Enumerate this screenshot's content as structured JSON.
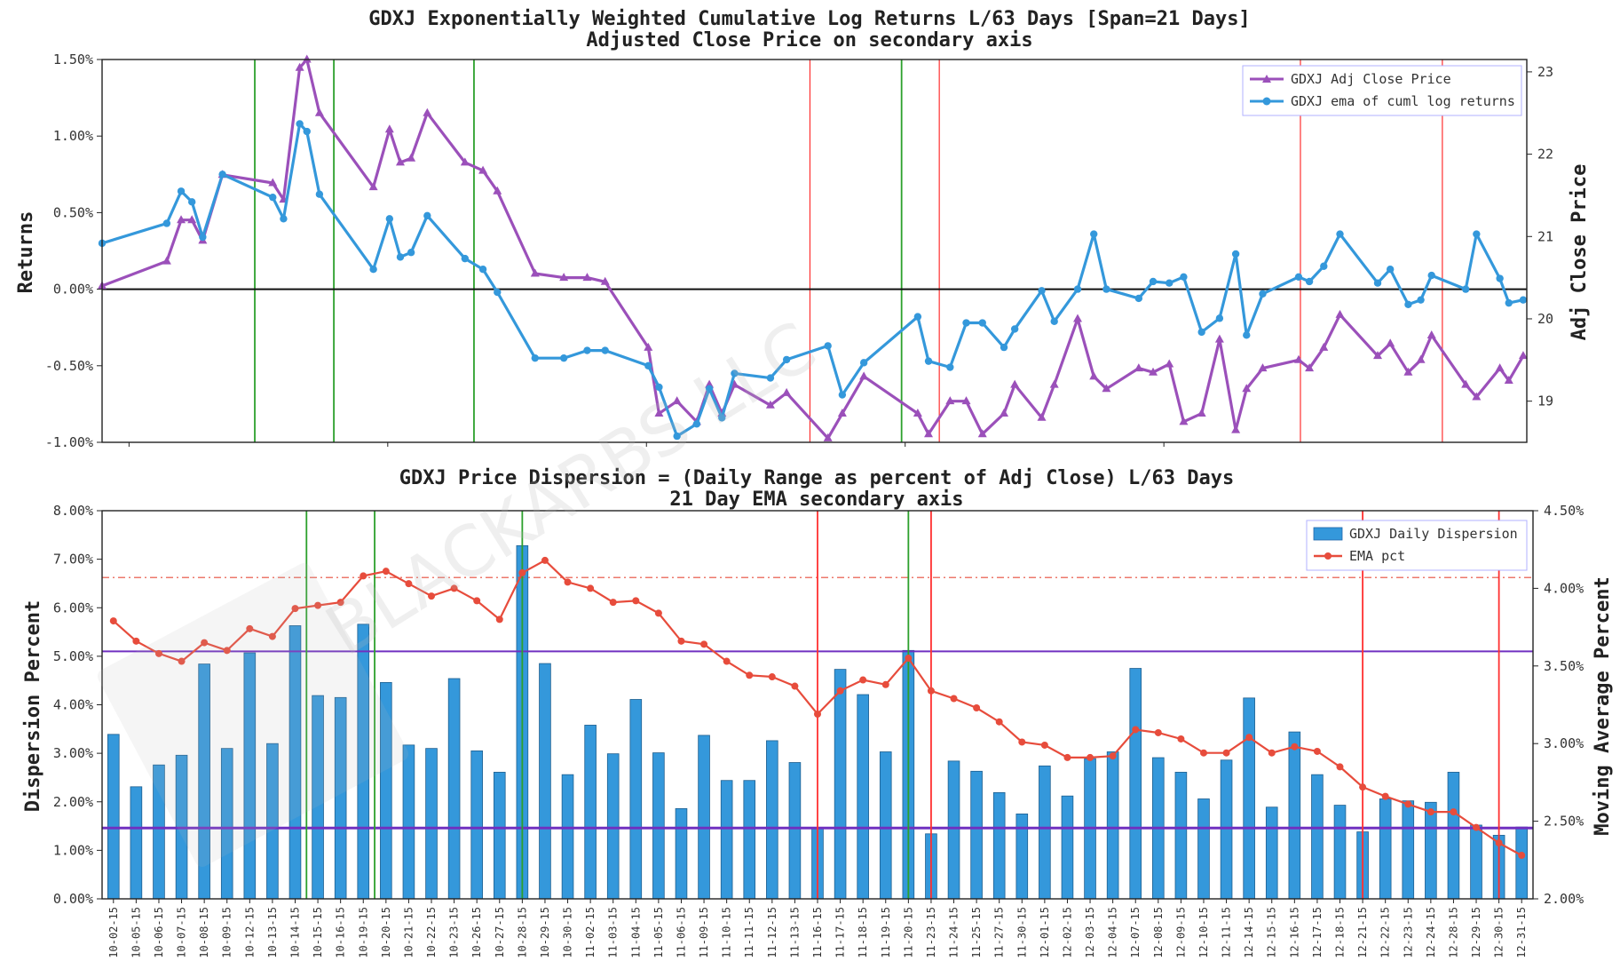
{
  "colors": {
    "adj_close": "#9b50ba",
    "ema_returns": "#3498db",
    "bars": "#3498db",
    "ema_pct": "#e74c3c",
    "hline_purple": "#7030c0",
    "vline_green": "#2ca02c",
    "vline_red": "#ff3030"
  },
  "watermark": "BLACKARBS LLC",
  "dates": [
    "10-02-15",
    "10-05-15",
    "10-06-15",
    "10-07-15",
    "10-08-15",
    "10-09-15",
    "10-12-15",
    "10-13-15",
    "10-14-15",
    "10-15-15",
    "10-16-15",
    "10-19-15",
    "10-20-15",
    "10-21-15",
    "10-22-15",
    "10-23-15",
    "10-26-15",
    "10-27-15",
    "10-28-15",
    "10-29-15",
    "10-30-15",
    "11-02-15",
    "11-03-15",
    "11-04-15",
    "11-05-15",
    "11-06-15",
    "11-09-15",
    "11-10-15",
    "11-11-15",
    "11-12-15",
    "11-13-15",
    "11-16-15",
    "11-17-15",
    "11-18-15",
    "11-19-15",
    "11-20-15",
    "11-23-15",
    "11-24-15",
    "11-25-15",
    "11-27-15",
    "11-30-15",
    "12-01-15",
    "12-02-15",
    "12-03-15",
    "12-04-15",
    "12-07-15",
    "12-08-15",
    "12-09-15",
    "12-10-15",
    "12-11-15",
    "12-14-15",
    "12-15-15",
    "12-16-15",
    "12-17-15",
    "12-18-15",
    "12-21-15",
    "12-22-15",
    "12-23-15",
    "12-24-15",
    "12-28-15",
    "12-29-15",
    "12-30-15",
    "12-31-15"
  ],
  "chart_data": [
    {
      "type": "line",
      "title": "GDXJ Exponentially Weighted Cumulative Log Returns L/63 Days [Span=21 Days]",
      "subtitle": "Adjusted Close Price on secondary axis",
      "ylabel": "Returns",
      "y2label": "Adj Close Price",
      "ylim": [
        -1.0,
        1.5
      ],
      "y2lim": [
        18.5,
        23.15
      ],
      "yticks": [
        "-1.00%",
        "-0.50%",
        "0.00%",
        "0.50%",
        "1.00%",
        "1.50%"
      ],
      "y2ticks": [
        "19",
        "20",
        "21",
        "22",
        "23"
      ],
      "legend_position": "top-right",
      "series": [
        {
          "name": "GDXJ Adj Close Price",
          "axis": "right",
          "marker": "triangle",
          "x": [
            0,
            3.6,
            4.4,
            5.0,
            5.6,
            6.7,
            9.5,
            10.1,
            11.0,
            11.4,
            12.1,
            15.1,
            16.0,
            16.6,
            17.2,
            18.1,
            20.2,
            21.2,
            22.0,
            24.1,
            25.7,
            27.0,
            28.0,
            30.4,
            31.0,
            32.0,
            33.1,
            33.8,
            34.5,
            35.2,
            37.2,
            38.1,
            40.4,
            41.2,
            42.4,
            45.4,
            46.0,
            47.2,
            48.1,
            49.0,
            50.2,
            50.8,
            52.3,
            53.0,
            54.3,
            55.2,
            55.9,
            57.7,
            58.5,
            59.4,
            60.2,
            61.2,
            62.2
          ],
          "values": [
            20.4,
            20.7,
            21.2,
            21.2,
            20.95,
            21.75,
            21.65,
            21.45,
            23.05,
            23.15,
            22.5,
            21.6,
            22.3,
            21.9,
            21.95,
            22.5,
            21.9,
            21.8,
            21.55,
            20.55,
            20.5,
            20.5,
            20.45,
            19.65,
            18.85,
            19.0,
            18.75,
            19.2,
            18.85,
            19.2,
            18.95,
            19.1,
            18.55,
            18.85,
            19.3,
            18.85,
            18.6,
            19.0,
            19.0,
            18.6,
            18.85,
            19.2,
            18.8,
            19.2,
            20.0,
            19.3,
            19.15,
            19.4,
            19.35,
            19.45,
            18.75,
            18.85,
            19.75
          ],
          "x_tail": [
            63.1,
            63.7,
            64.6,
            66.6,
            67.2,
            68.0,
            68.9,
            71.0,
            71.7,
            72.7,
            73.4,
            74.0,
            75.9,
            76.5,
            77.8,
            78.3,
            79.1
          ],
          "values_tail": [
            18.65,
            19.15,
            19.4,
            19.5,
            19.4,
            19.65,
            20.05,
            19.55,
            19.7,
            19.35,
            19.5,
            19.8,
            19.2,
            19.05,
            19.4,
            19.25,
            19.55
          ]
        },
        {
          "name": "GDXJ ema of cuml log returns",
          "axis": "left",
          "marker": "circle",
          "x": [
            0,
            3.6,
            4.4,
            5.0,
            5.6,
            6.7,
            9.5,
            10.1,
            11.0,
            11.4,
            12.1,
            15.1,
            16.0,
            16.6,
            17.2,
            18.1,
            20.2,
            21.2,
            22.0,
            24.1,
            25.7,
            27.0,
            28.0,
            30.4,
            31.0,
            32.0,
            33.1,
            33.8,
            34.5,
            35.2,
            37.2,
            38.1,
            40.4,
            41.2,
            42.4,
            45.4,
            46.0,
            47.2,
            48.1,
            49.0,
            50.2,
            50.8,
            52.3,
            53.0,
            54.3,
            55.2,
            55.9,
            57.7,
            58.5,
            59.4,
            60.2,
            61.2,
            62.2
          ],
          "values": [
            0.3,
            0.43,
            0.64,
            0.57,
            0.34,
            0.75,
            0.6,
            0.46,
            1.08,
            1.03,
            0.62,
            0.13,
            0.46,
            0.21,
            0.24,
            0.48,
            0.2,
            0.13,
            -0.02,
            -0.45,
            -0.45,
            -0.4,
            -0.4,
            -0.5,
            -0.64,
            -0.96,
            -0.88,
            -0.65,
            -0.84,
            -0.55,
            -0.58,
            -0.46,
            -0.37,
            -0.69,
            -0.48,
            -0.18,
            -0.47,
            -0.51,
            -0.22,
            -0.22,
            -0.38,
            -0.26,
            -0.01,
            -0.21,
            0.0,
            0.36,
            0.0,
            -0.06,
            0.05,
            0.04,
            0.08,
            -0.28,
            -0.19
          ],
          "x_tail": [
            63.1,
            63.7,
            64.6,
            66.6,
            67.2,
            68.0,
            68.9,
            71.0,
            71.7,
            72.7,
            73.4,
            74.0,
            75.9,
            76.5,
            77.8,
            78.3,
            79.1
          ],
          "values_tail": [
            0.23,
            -0.3,
            -0.03,
            0.08,
            0.05,
            0.15,
            0.36,
            0.04,
            0.13,
            -0.1,
            -0.07,
            0.09,
            0.0,
            0.36,
            0.07,
            -0.09,
            -0.07
          ]
        }
      ],
      "vlines_green": [
        8.5,
        12.9,
        20.7,
        44.5
      ],
      "vlines_red": [
        39.4,
        46.6,
        66.7,
        74.6
      ],
      "hline": 0.0
    },
    {
      "type": "bar",
      "title": "GDXJ Price Dispersion = (Daily Range as percent of Adj Close) L/63 Days",
      "subtitle": "21 Day EMA secondary axis",
      "ylabel": "Dispersion Percent",
      "y2label": "Moving Average Percent",
      "ylim": [
        0,
        8
      ],
      "y2lim": [
        2.0,
        4.5
      ],
      "yticks": [
        "0.00%",
        "1.00%",
        "2.00%",
        "3.00%",
        "4.00%",
        "5.00%",
        "6.00%",
        "7.00%",
        "8.00%"
      ],
      "y2ticks": [
        "2.00%",
        "2.50%",
        "3.00%",
        "3.50%",
        "4.00%",
        "4.50%"
      ],
      "legend_position": "top-right",
      "series": [
        {
          "name": "GDXJ Daily Dispersion",
          "type": "bar",
          "axis": "left",
          "values": [
            3.39,
            2.31,
            2.76,
            2.96,
            4.84,
            3.1,
            5.07,
            3.2,
            5.63,
            4.19,
            4.15,
            5.66,
            4.46,
            3.17,
            3.1,
            4.54,
            3.05,
            2.61,
            7.28,
            4.85,
            2.56,
            3.58,
            2.99,
            4.11,
            3.01,
            1.86,
            3.37,
            2.44,
            2.44,
            3.26,
            2.81,
            1.47,
            4.73,
            4.21,
            3.03,
            5.12,
            1.34,
            2.84,
            2.63,
            2.19,
            1.75,
            2.74,
            2.12,
            2.89,
            3.03,
            4.75,
            2.91,
            2.61,
            2.06,
            2.86,
            4.14,
            1.89,
            3.44,
            2.56,
            1.93,
            1.38,
            2.06,
            2.02,
            1.99,
            2.61,
            1.52,
            1.31,
            1.48
          ]
        },
        {
          "name": "EMA pct",
          "type": "line",
          "axis": "right",
          "values": [
            3.79,
            3.66,
            3.58,
            3.53,
            3.65,
            3.6,
            3.74,
            3.69,
            3.87,
            3.89,
            3.91,
            4.08,
            4.11,
            4.03,
            3.95,
            4.0,
            3.92,
            3.8,
            4.1,
            4.18,
            4.04,
            4.0,
            3.91,
            3.92,
            3.84,
            3.66,
            3.64,
            3.53,
            3.44,
            3.43,
            3.37,
            3.19,
            3.34,
            3.41,
            3.38,
            3.55,
            3.34,
            3.29,
            3.23,
            3.14,
            3.01,
            2.99,
            2.91,
            2.91,
            2.92,
            3.09,
            3.07,
            3.03,
            2.94,
            2.94,
            3.04,
            2.94,
            2.98,
            2.95,
            2.85,
            2.72,
            2.66,
            2.61,
            2.56,
            2.56,
            2.46,
            2.36,
            2.28
          ]
        }
      ],
      "hlines_purple_left": [
        5.1,
        1.46
      ],
      "hline_dashdot_right": 4.07,
      "vlines_green": [
        8.5,
        11.5,
        18.0,
        35.0
      ],
      "vlines_red": [
        31.0,
        36.0,
        55.0,
        61.0
      ]
    }
  ]
}
